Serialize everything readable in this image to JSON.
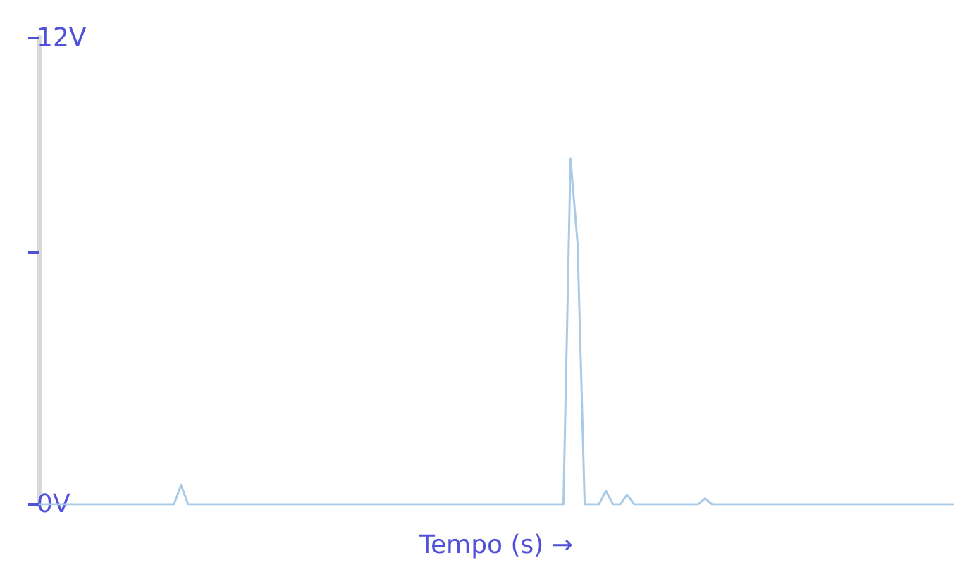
{
  "chart_data": {
    "type": "line",
    "xlabel": "Tempo (s) →",
    "categories": [
      null,
      null,
      null,
      null,
      null,
      null,
      null,
      null,
      null,
      null,
      null,
      null,
      null,
      null,
      null,
      null,
      null,
      null,
      null,
      null,
      null,
      null,
      null,
      null,
      null,
      null,
      null,
      null,
      null,
      null,
      null,
      null,
      null,
      null,
      null,
      null,
      null,
      null,
      null,
      null,
      null,
      null,
      null,
      null,
      null,
      null,
      null,
      null,
      null,
      null,
      null,
      null,
      null,
      null,
      null,
      null,
      null,
      null,
      null,
      null,
      null,
      null,
      null,
      null,
      null,
      null,
      null,
      null,
      null,
      null,
      null,
      null,
      null,
      null,
      null,
      null,
      null,
      null,
      null,
      null,
      null,
      null,
      null,
      null,
      null,
      null,
      null,
      null,
      null,
      null,
      null,
      null,
      null,
      null,
      null,
      null,
      null,
      null,
      null,
      null,
      null,
      null,
      null,
      null,
      null,
      null,
      null,
      null,
      null,
      null,
      null,
      null,
      null,
      null,
      null,
      null,
      null,
      null,
      null,
      null,
      null,
      null,
      null,
      null,
      null,
      null,
      null,
      null,
      null,
      null
    ],
    "series": [
      {
        "color": "#a9cbe8",
        "values": [
          0,
          0,
          0,
          0,
          0,
          0,
          0,
          0,
          0,
          0,
          0,
          0,
          0,
          0,
          0,
          0,
          0,
          0,
          0,
          0,
          0.5,
          0,
          0,
          0,
          0,
          0,
          0,
          0,
          0,
          0,
          0,
          0,
          0,
          0,
          0,
          0,
          0,
          0,
          0,
          0,
          0,
          0,
          0,
          0,
          0,
          0,
          0,
          0,
          0,
          0,
          0,
          0,
          0,
          0,
          0,
          0,
          0,
          0,
          0,
          0,
          0,
          0,
          0,
          0,
          0,
          0,
          0,
          0,
          0,
          0,
          0,
          0,
          0,
          0,
          0,
          8.9,
          6.7,
          0,
          0,
          0,
          0.35,
          0,
          0,
          0.25,
          0,
          0,
          0,
          0,
          0,
          0,
          0,
          0,
          0,
          0,
          0.15,
          0,
          0,
          0,
          0,
          0,
          0,
          0,
          0,
          0,
          0,
          0,
          0,
          0,
          0,
          0,
          0,
          0,
          0,
          0,
          0,
          0,
          0,
          0,
          0,
          0,
          0,
          0,
          0,
          0,
          0,
          0,
          0,
          0,
          0,
          0
        ]
      }
    ],
    "ylim": [
      0,
      12
    ],
    "yticks": [
      {
        "value": 0,
        "label": "0V"
      },
      {
        "value": 6.5,
        "label": null
      },
      {
        "value": 12,
        "label": "12V"
      }
    ],
    "tick_labels": "y",
    "grid": false,
    "line_style": "solid"
  }
}
